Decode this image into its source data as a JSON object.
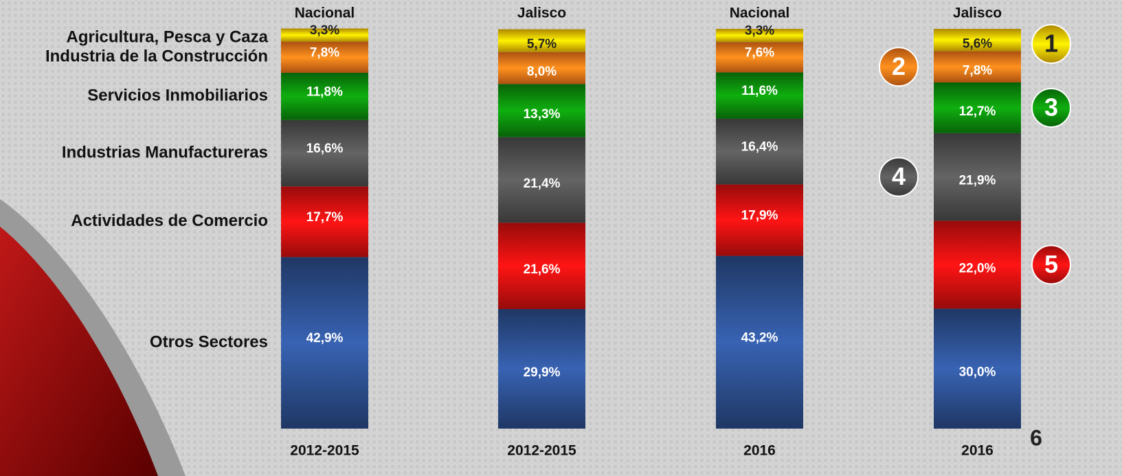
{
  "chart_data": {
    "type": "stacked-bar",
    "categories": [
      "Nacional",
      "Jalisco",
      "Nacional",
      "Jalisco"
    ],
    "periods": [
      "2012-2015",
      "2012-2015",
      "2016",
      "2016"
    ],
    "ylim": [
      0,
      100
    ],
    "series": [
      {
        "name": "Otros Sectores",
        "color": "#2d4f8f",
        "values": [
          42.9,
          29.9,
          43.2,
          30.0
        ],
        "value_labels": [
          "42,9%",
          "29,9%",
          "43,2%",
          "30,0%"
        ]
      },
      {
        "name": "Actividades de Comercio",
        "color": "#d81010",
        "values": [
          17.7,
          21.6,
          17.9,
          22.0
        ],
        "value_labels": [
          "17,7%",
          "21,6%",
          "17,9%",
          "22,0%"
        ],
        "badge": "5"
      },
      {
        "name": "Industrias Manufactureras",
        "color": "#505050",
        "values": [
          16.6,
          21.4,
          16.4,
          21.9
        ],
        "value_labels": [
          "16,6%",
          "21,4%",
          "16,4%",
          "21,9%"
        ],
        "badge": "4"
      },
      {
        "name": "Servicios Inmobiliarios",
        "color": "#0c8c0c",
        "values": [
          11.8,
          13.3,
          11.6,
          12.7
        ],
        "value_labels": [
          "11,8%",
          "13,3%",
          "11,6%",
          "12,7%"
        ],
        "badge": "3"
      },
      {
        "name": "Industria de la Construcción",
        "color": "#f47418",
        "values": [
          7.8,
          8.0,
          7.6,
          7.8
        ],
        "value_labels": [
          "7,8%",
          "8,0%",
          "7,6%",
          "7,8%"
        ],
        "badge": "2"
      },
      {
        "name": "Agricultura, Pesca y Caza",
        "color": "#f8c200",
        "values": [
          3.3,
          5.7,
          3.3,
          5.6
        ],
        "value_labels": [
          "3,3%",
          "5,7%",
          "3,3%",
          "5,6%"
        ],
        "badge": "1"
      }
    ],
    "page_number": "6"
  }
}
